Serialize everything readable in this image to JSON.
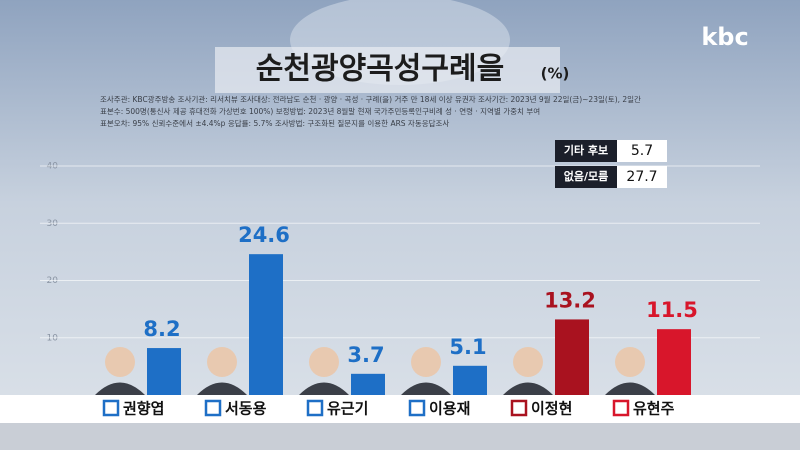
{
  "logo": "kbc",
  "chart_data": {
    "type": "bar",
    "title": "순천광양곡성구례을",
    "unit": "(%)",
    "notes": [
      "조사주관: KBC광주방송   조사기관: 리서치뷰   조사대상: 전라남도 순천 · 광양 · 곡성 · 구례(을) 거주 만 18세 이상 유권자   조사기간: 2023년 9월 22일(금)~23일(토), 2일간",
      "표본수: 500명(통신사 제공 휴대전화 가상번호 100%)   보정방법: 2023년 8월말 현재 국가주민등록인구비례 성 · 연령 · 지역별 가중치 부여",
      "표본오차: 95% 신뢰수준에서 ±4.4%p   응답률: 5.7%   조사방법: 구조화된 질문지를 이용한 ARS 자동응답조사"
    ],
    "categories": [
      "권향엽",
      "서동용",
      "유근기",
      "이용재",
      "이정현",
      "유현주"
    ],
    "values": [
      8.2,
      24.6,
      3.7,
      5.1,
      13.2,
      11.5
    ],
    "colors": [
      "#1e6fc6",
      "#1e6fc6",
      "#1e6fc6",
      "#1e6fc6",
      "#a9121f",
      "#d8162b"
    ],
    "others": [
      {
        "label": "기타 후보",
        "value": 5.7
      },
      {
        "label": "없음/모름",
        "value": 27.7
      }
    ],
    "ylim": [
      0,
      40
    ],
    "yticks": [
      10,
      20,
      30,
      40
    ],
    "grid": true
  }
}
